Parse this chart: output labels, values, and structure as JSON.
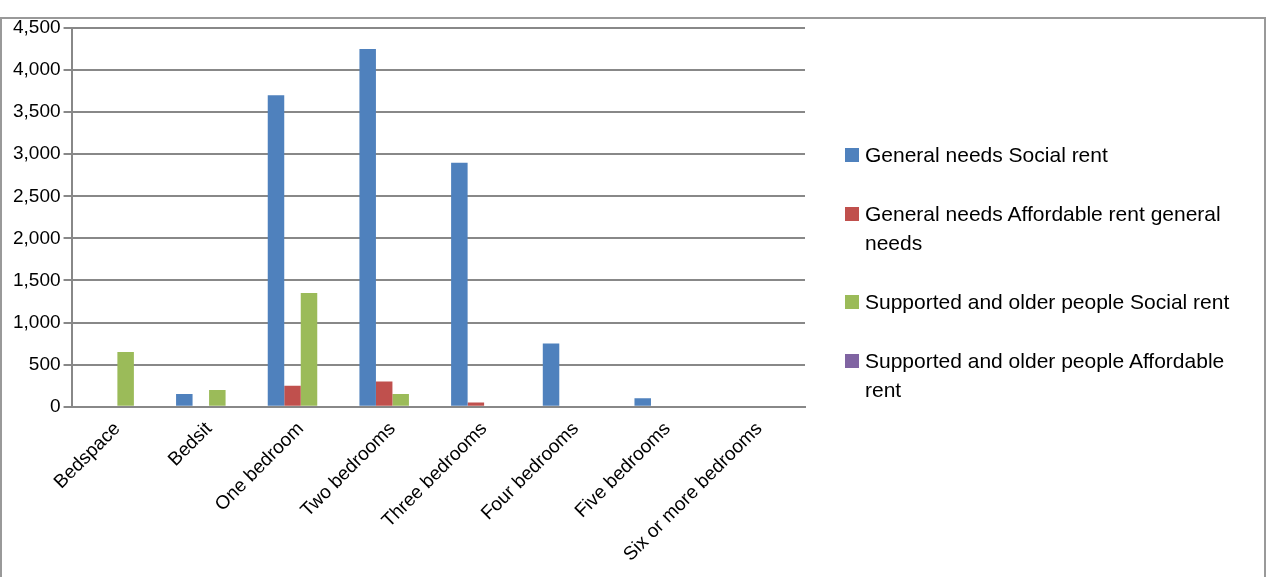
{
  "chart_data": {
    "type": "bar",
    "categories": [
      "Bedspace",
      "Bedsit",
      "One bedroom",
      "Two bedrooms",
      "Three bedrooms",
      "Four bedrooms",
      "Five bedrooms",
      "Six or more bedrooms"
    ],
    "series": [
      {
        "name": "General needs Social rent",
        "color": "#4f81bd",
        "values": [
          null,
          150,
          3700,
          4250,
          2900,
          750,
          100,
          0
        ]
      },
      {
        "name": "General needs Affordable rent general needs",
        "color": "#c0504d",
        "values": [
          0,
          null,
          250,
          300,
          50,
          0,
          0,
          0
        ]
      },
      {
        "name": "Supported and older people Social rent",
        "color": "#9bbb59",
        "values": [
          650,
          200,
          1350,
          150,
          0,
          0,
          0,
          0
        ]
      },
      {
        "name": "Supported and older people Affordable rent",
        "color": "#8064a2",
        "values": [
          null,
          0,
          null,
          0,
          0,
          0,
          0,
          0
        ]
      }
    ],
    "ylim": [
      0,
      4500
    ],
    "yticks": [
      0,
      500,
      {
        "value": 1000,
        "label": "1,000"
      },
      {
        "value": 1500,
        "label": "1,500"
      },
      {
        "value": 2000,
        "label": "2,000"
      },
      {
        "value": 2500,
        "label": "2,500"
      },
      {
        "value": 3000,
        "label": "3,000"
      },
      {
        "value": 3500,
        "label": "3,500"
      },
      {
        "value": 4000,
        "label": "4,000"
      },
      {
        "value": 4500,
        "label": "4,500"
      }
    ],
    "grid": "y",
    "legend": "right"
  }
}
